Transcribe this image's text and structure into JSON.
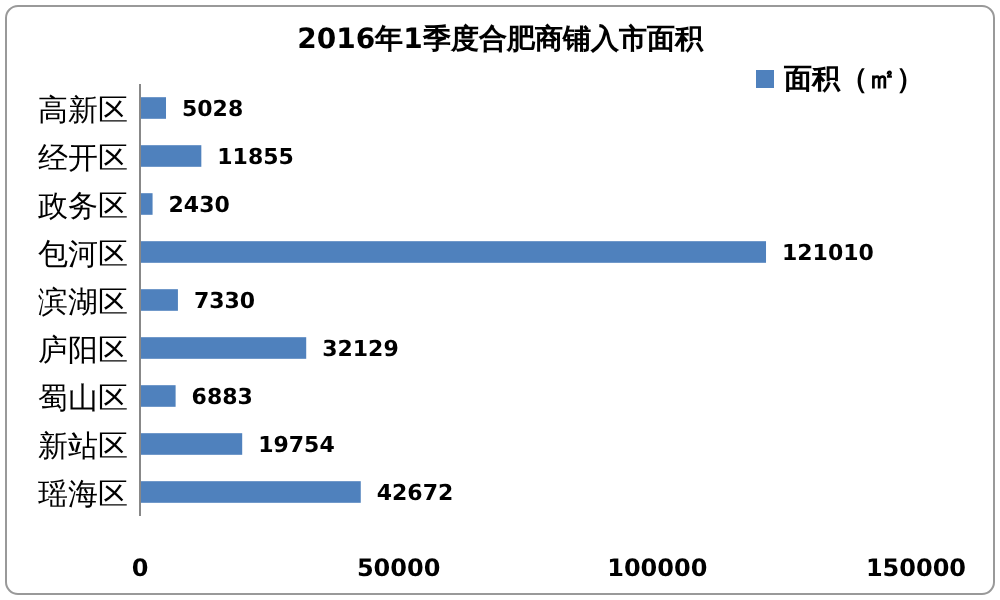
{
  "chart_data": {
    "type": "bar",
    "orientation": "horizontal",
    "title": "2016年1季度合肥商铺入市面积",
    "categories": [
      "高新区",
      "经开区",
      "政务区",
      "包河区",
      "滨湖区",
      "庐阳区",
      "蜀山区",
      "新站区",
      "瑶海区"
    ],
    "series": [
      {
        "name": "面积（㎡）",
        "color": "#4f81bd",
        "values": [
          5028,
          11855,
          2430,
          121010,
          7330,
          32129,
          6883,
          19754,
          42672
        ]
      }
    ],
    "xlim": [
      0,
      150000
    ],
    "xticks": [
      0,
      50000,
      100000,
      150000
    ],
    "data_labels": true,
    "legend": "top right"
  }
}
